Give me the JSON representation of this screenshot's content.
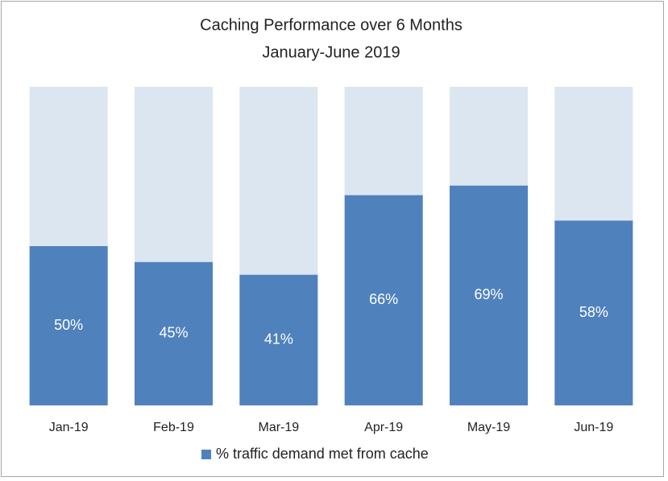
{
  "chart_data": {
    "type": "bar",
    "title": "Caching Performance over 6 Months",
    "subtitle": "January-June 2019",
    "categories": [
      "Jan-19",
      "Feb-19",
      "Mar-19",
      "Apr-19",
      "May-19",
      "Jun-19"
    ],
    "series": [
      {
        "name": "% traffic demand met from cache",
        "color": "#4f81bd",
        "values": [
          50,
          45,
          41,
          66,
          69,
          58
        ],
        "value_labels": [
          "50%",
          "45%",
          "41%",
          "66%",
          "69%",
          "58%"
        ]
      }
    ],
    "track_color": "#dce6f1",
    "ylim": [
      0,
      100
    ],
    "legend": "bottom"
  }
}
